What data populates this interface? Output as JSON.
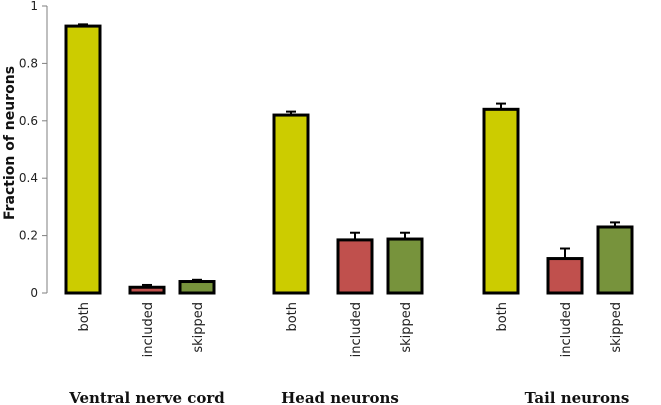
{
  "chart_data": {
    "type": "bar",
    "ylabel": "Fraction of neurons",
    "ylim": [
      0,
      1
    ],
    "yticks": [
      0,
      0.2,
      0.4,
      0.6,
      0.8,
      1
    ],
    "ytick_labels": [
      "0",
      "0.2",
      "0.4",
      "0.6",
      "0.8",
      "1"
    ],
    "grid": false,
    "colors": {
      "both": "#cccc00",
      "included": "#c0504d",
      "skipped": "#77933c",
      "outline": "#000000"
    },
    "groups": [
      {
        "name": "Ventral nerve cord",
        "bars": [
          {
            "category": "both",
            "value": 0.93,
            "error": 0.006
          },
          {
            "category": "included",
            "value": 0.02,
            "error": 0.008
          },
          {
            "category": "skipped",
            "value": 0.04,
            "error": 0.006
          }
        ]
      },
      {
        "name": "Head neurons",
        "bars": [
          {
            "category": "both",
            "value": 0.62,
            "error": 0.012
          },
          {
            "category": "included",
            "value": 0.185,
            "error": 0.025
          },
          {
            "category": "skipped",
            "value": 0.188,
            "error": 0.022
          }
        ]
      },
      {
        "name": "Tail neurons",
        "bars": [
          {
            "category": "both",
            "value": 0.64,
            "error": 0.02
          },
          {
            "category": "included",
            "value": 0.12,
            "error": 0.035
          },
          {
            "category": "skipped",
            "value": 0.23,
            "error": 0.016
          }
        ]
      }
    ]
  }
}
